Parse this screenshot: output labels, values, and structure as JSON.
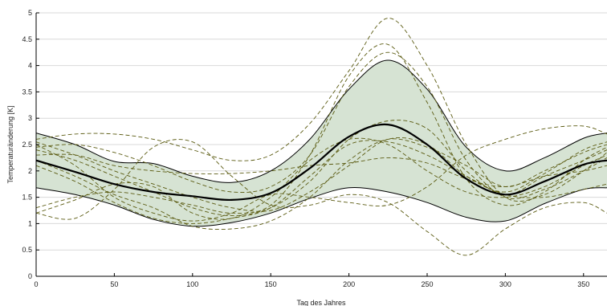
{
  "chart_data": {
    "type": "line",
    "title": "",
    "xlabel": "Tag des Jahres",
    "ylabel": "Temperaturänderung [K]",
    "xlim": [
      0,
      365
    ],
    "ylim": [
      0,
      5
    ],
    "x_ticks": [
      0,
      50,
      100,
      150,
      200,
      250,
      300,
      350
    ],
    "y_ticks": [
      0,
      0.5,
      1,
      1.5,
      2,
      2.5,
      3,
      3.5,
      4,
      4.5,
      5
    ],
    "y_tick_labels": [
      "0",
      "0.5",
      "1",
      "1.5",
      "2",
      "2.5",
      "3",
      "3.5",
      "4",
      "4.5",
      "5"
    ],
    "grid": "horizontal",
    "legend": "none",
    "x": [
      0,
      25,
      50,
      75,
      100,
      125,
      150,
      175,
      200,
      225,
      250,
      275,
      300,
      325,
      350,
      365
    ],
    "band": {
      "color": "#d6e3d3",
      "upper": [
        2.72,
        2.5,
        2.18,
        2.14,
        1.9,
        1.78,
        2.0,
        2.6,
        3.55,
        4.1,
        3.55,
        2.45,
        2.0,
        2.25,
        2.62,
        2.72
      ],
      "lower": [
        1.68,
        1.55,
        1.35,
        1.08,
        0.95,
        1.02,
        1.2,
        1.48,
        1.68,
        1.6,
        1.4,
        1.12,
        1.05,
        1.38,
        1.65,
        1.68
      ]
    },
    "mean": {
      "color": "#000000",
      "values": [
        2.2,
        1.98,
        1.75,
        1.6,
        1.52,
        1.45,
        1.58,
        2.05,
        2.65,
        2.88,
        2.5,
        1.85,
        1.55,
        1.8,
        2.12,
        2.2
      ]
    },
    "series": [
      {
        "values": [
          2.4,
          2.2,
          1.9,
          1.6,
          1.3,
          1.15,
          1.3,
          1.8,
          2.6,
          2.95,
          2.8,
          2.0,
          1.55,
          1.9,
          2.2,
          2.4
        ]
      },
      {
        "values": [
          2.55,
          2.3,
          2.0,
          1.75,
          1.5,
          1.3,
          1.25,
          1.6,
          2.1,
          2.6,
          2.5,
          1.9,
          1.6,
          1.95,
          2.4,
          2.55
        ]
      },
      {
        "values": [
          1.3,
          1.5,
          1.6,
          1.5,
          1.35,
          1.2,
          1.35,
          2.3,
          3.8,
          4.4,
          3.3,
          1.85,
          1.35,
          1.6,
          2.2,
          2.45
        ]
      },
      {
        "values": [
          2.6,
          2.7,
          2.7,
          2.6,
          2.4,
          2.2,
          2.3,
          2.9,
          3.9,
          4.9,
          4.0,
          2.5,
          1.5,
          1.55,
          2.0,
          2.35
        ]
      },
      {
        "values": [
          1.2,
          1.45,
          1.75,
          1.7,
          1.2,
          1.1,
          1.5,
          2.2,
          2.6,
          2.5,
          2.0,
          1.6,
          1.5,
          1.7,
          2.1,
          2.3
        ]
      },
      {
        "values": [
          2.2,
          1.9,
          1.55,
          1.3,
          0.95,
          0.9,
          1.05,
          1.5,
          2.2,
          2.6,
          2.45,
          2.1,
          1.7,
          2.0,
          2.35,
          2.5
        ]
      },
      {
        "values": [
          2.5,
          2.1,
          1.5,
          1.2,
          1.05,
          1.2,
          1.55,
          1.5,
          1.4,
          1.35,
          1.7,
          2.3,
          2.6,
          2.8,
          2.85,
          2.7
        ]
      },
      {
        "values": [
          1.2,
          1.1,
          1.65,
          2.45,
          2.55,
          1.9,
          1.35,
          1.35,
          1.55,
          1.4,
          0.85,
          0.4,
          0.9,
          1.3,
          1.4,
          1.2
        ]
      },
      {
        "values": [
          2.3,
          2.3,
          2.1,
          2.0,
          1.95,
          1.95,
          2.0,
          2.1,
          2.15,
          2.25,
          2.15,
          1.85,
          1.7,
          1.9,
          2.0,
          2.1
        ]
      },
      {
        "values": [
          2.45,
          2.5,
          2.35,
          2.1,
          1.8,
          1.6,
          1.7,
          2.3,
          3.6,
          4.25,
          3.6,
          2.2,
          1.5,
          1.65,
          2.0,
          2.25
        ]
      },
      {
        "values": [
          2.1,
          1.8,
          1.4,
          1.1,
          1.0,
          1.1,
          1.3,
          1.9,
          2.5,
          2.55,
          2.3,
          1.9,
          1.55,
          1.5,
          1.65,
          1.75
        ]
      }
    ],
    "series_color": "#5a5a10"
  }
}
